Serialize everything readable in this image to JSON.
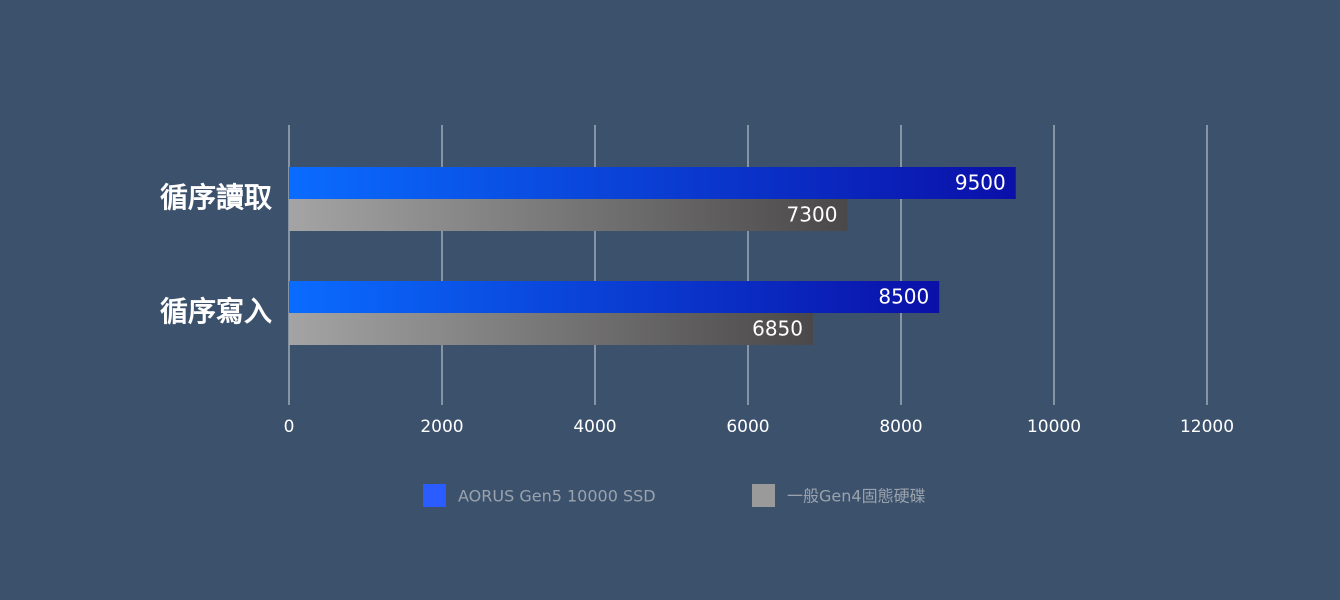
{
  "chart_data": {
    "type": "bar",
    "orientation": "horizontal",
    "categories": [
      "循序讀取",
      "循序寫入"
    ],
    "series": [
      {
        "name": "AORUS Gen5 10000 SSD",
        "color": "#2a5cff",
        "gradient": [
          "#0a6cff",
          "#0a10a8"
        ],
        "values": [
          9500,
          8500
        ]
      },
      {
        "name": "一般Gen4固態硬碟",
        "color": "#9a9a9a",
        "gradient": [
          "#a4a4a4",
          "#4a4848"
        ],
        "values": [
          7300,
          6850
        ]
      }
    ],
    "xlim": [
      0,
      12000
    ],
    "xticks": [
      0,
      2000,
      4000,
      6000,
      8000,
      10000,
      12000
    ],
    "grid": true
  }
}
